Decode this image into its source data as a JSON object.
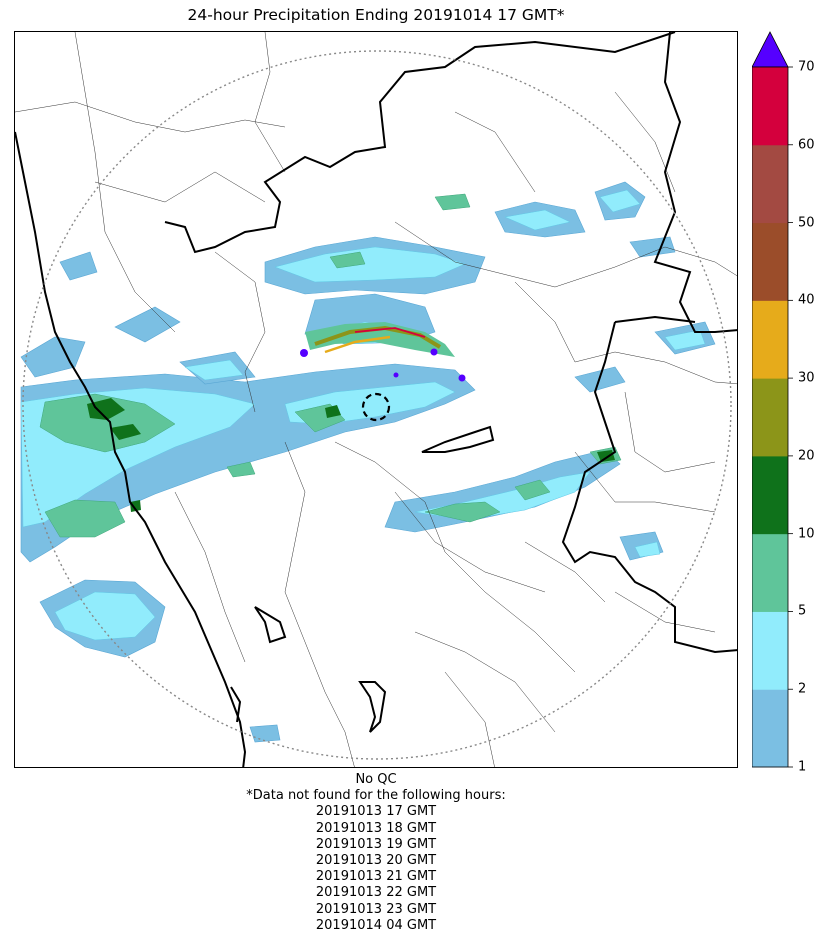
{
  "title": "24-hour Precipitation Ending 20191014 17 GMT*",
  "colorbar": {
    "ticks": [
      "1",
      "2",
      "5",
      "10",
      "20",
      "30",
      "40",
      "50",
      "60",
      "70"
    ],
    "colors": [
      "#7bbfe3",
      "#91ecfc",
      "#5fc59a",
      "#0f721b",
      "#8c9519",
      "#e6ab1b",
      "#9b4d2a",
      "#a34a42",
      "#d4003d"
    ],
    "overflow_color": "#5500ff",
    "scale": "discrete, extend max"
  },
  "notes": {
    "qc": "No QC",
    "missing_header": "*Data not found for the following hours:",
    "missing_hours": [
      "20191013 17 GMT",
      "20191013 18 GMT",
      "20191013 19 GMT",
      "20191013 20 GMT",
      "20191013 21 GMT",
      "20191013 22 GMT",
      "20191013 23 GMT",
      "20191014 04 GMT"
    ]
  }
}
